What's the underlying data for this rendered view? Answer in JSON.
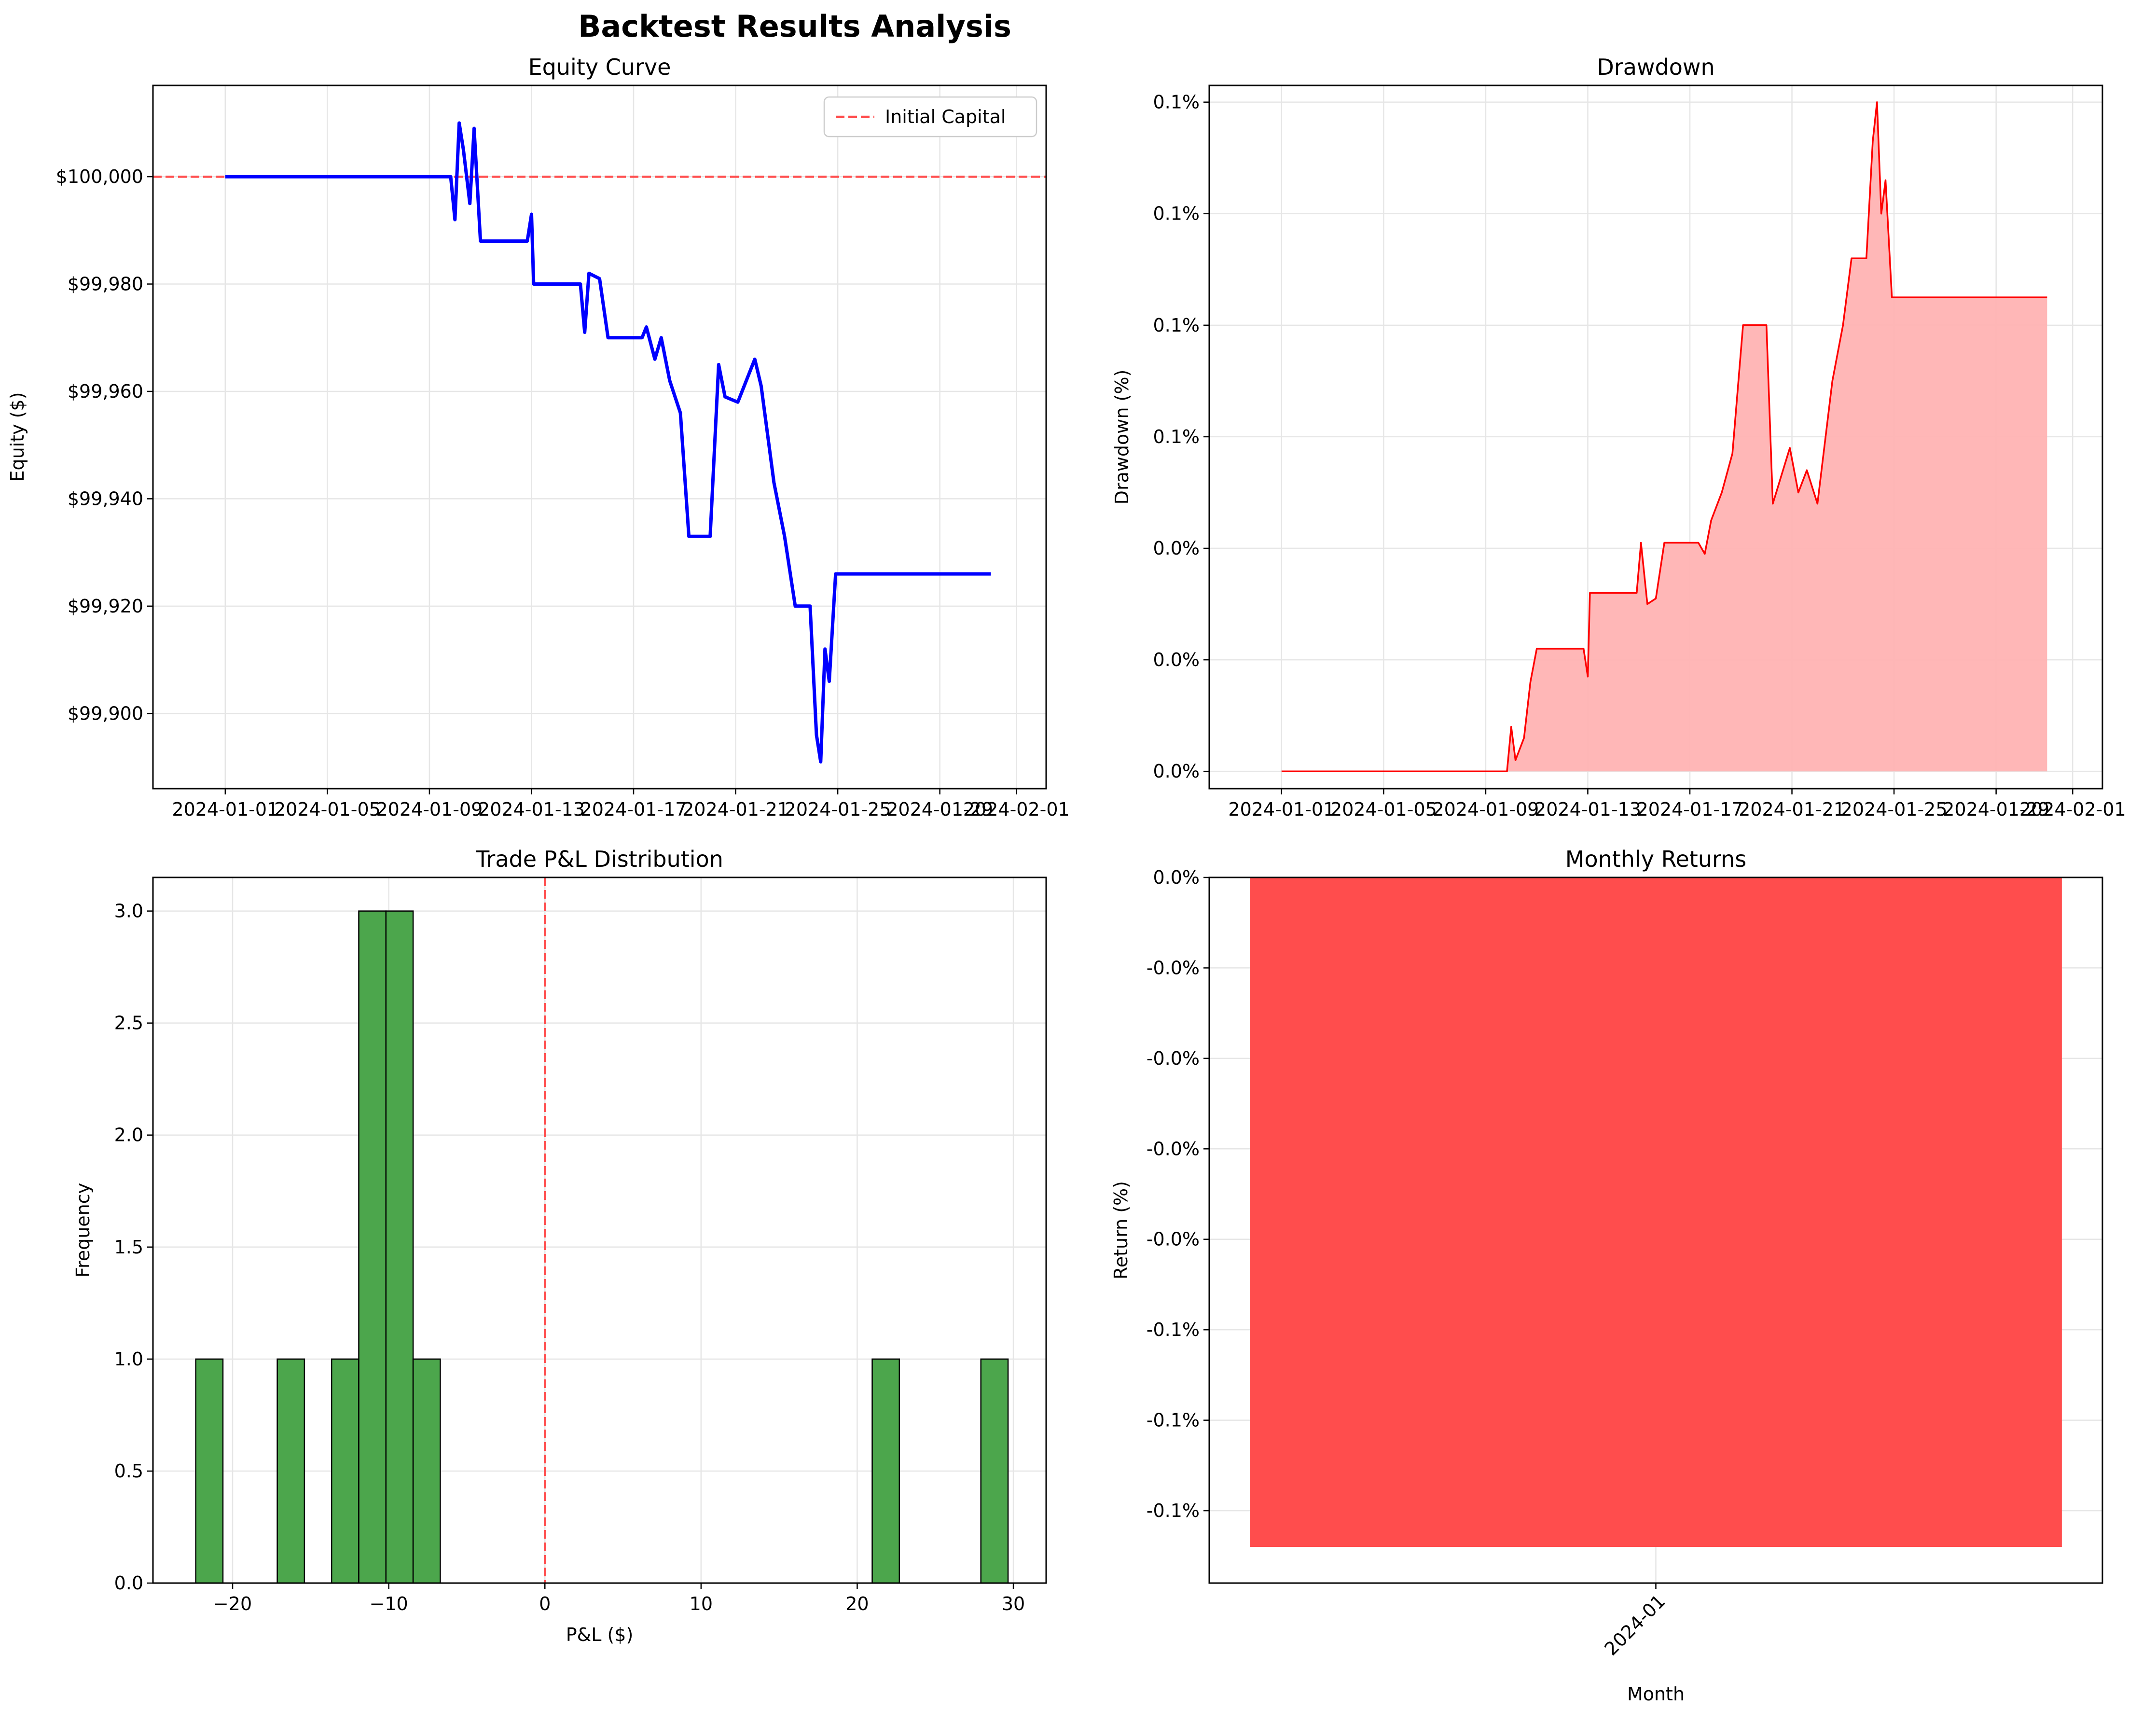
{
  "suptitle": "Backtest Results Analysis",
  "colors": {
    "equity_line": "#0000ff",
    "initial_capital_line": "#ff4d4d",
    "drawdown_line": "#ff0000",
    "drawdown_fill": "#ffb3b3",
    "histogram_bar": "#4ca64c",
    "zero_line": "#ff4d4d",
    "monthly_bar": "#ff4d4d",
    "grid": "#e6e6e6"
  },
  "chart_data": [
    {
      "type": "line",
      "title": "Equity Curve",
      "xlabel": "",
      "ylabel": "Equity ($)",
      "x_ticks": [
        "2024-01-01",
        "2024-01-05",
        "2024-01-09",
        "2024-01-13",
        "2024-01-17",
        "2024-01-21",
        "2024-01-25",
        "2024-01-29",
        "2024-02-01"
      ],
      "y_ticks": [
        "$99,900",
        "$99,920",
        "$99,940",
        "$99,960",
        "$99,980",
        "$100,000"
      ],
      "ylim": [
        99886,
        100017
      ],
      "grid": true,
      "legend": {
        "placement": "upper right",
        "entries": [
          "Initial Capital"
        ]
      },
      "reference_line": {
        "name": "Initial Capital",
        "y": 100000,
        "style": "dashed"
      },
      "series": [
        {
          "points": [
            [
              "2024-01-01",
              100000
            ],
            [
              "2024-01-09 20:00",
              100000
            ],
            [
              "2024-01-10 00:00",
              99992
            ],
            [
              "2024-01-10 04:00",
              100010
            ],
            [
              "2024-01-10 08:00",
              100005
            ],
            [
              "2024-01-10 14:00",
              99995
            ],
            [
              "2024-01-10 18:00",
              100009
            ],
            [
              "2024-01-11 00:00",
              99988
            ],
            [
              "2024-01-12 20:00",
              99988
            ],
            [
              "2024-01-13 00:00",
              99993
            ],
            [
              "2024-01-13 02:00",
              99980
            ],
            [
              "2024-01-14 22:00",
              99980
            ],
            [
              "2024-01-15 02:00",
              99971
            ],
            [
              "2024-01-15 06:00",
              99982
            ],
            [
              "2024-01-15 16:00",
              99981
            ],
            [
              "2024-01-16 00:00",
              99970
            ],
            [
              "2024-01-17 08:00",
              99970
            ],
            [
              "2024-01-17 12:00",
              99972
            ],
            [
              "2024-01-17 20:00",
              99966
            ],
            [
              "2024-01-18 02:00",
              99970
            ],
            [
              "2024-01-18 10:00",
              99962
            ],
            [
              "2024-01-18 20:00",
              99956
            ],
            [
              "2024-01-19 04:00",
              99933
            ],
            [
              "2024-01-20 00:00",
              99933
            ],
            [
              "2024-01-20 08:00",
              99965
            ],
            [
              "2024-01-20 14:00",
              99959
            ],
            [
              "2024-01-21 02:00",
              99958
            ],
            [
              "2024-01-21 10:00",
              99962
            ],
            [
              "2024-01-21 18:00",
              99966
            ],
            [
              "2024-01-22 00:00",
              99961
            ],
            [
              "2024-01-22 12:00",
              99943
            ],
            [
              "2024-01-22 22:00",
              99933
            ],
            [
              "2024-01-23 08:00",
              99920
            ],
            [
              "2024-01-23 22:00",
              99920
            ],
            [
              "2024-01-24 04:00",
              99896
            ],
            [
              "2024-01-24 08:00",
              99891
            ],
            [
              "2024-01-24 12:00",
              99912
            ],
            [
              "2024-01-24 16:00",
              99906
            ],
            [
              "2024-01-24 22:00",
              99926
            ],
            [
              "2024-01-31 00:00",
              99926
            ]
          ]
        }
      ]
    },
    {
      "type": "area",
      "title": "Drawdown",
      "xlabel": "",
      "ylabel": "Drawdown (%)",
      "x_ticks": [
        "2024-01-01",
        "2024-01-05",
        "2024-01-09",
        "2024-01-13",
        "2024-01-17",
        "2024-01-21",
        "2024-01-25",
        "2024-01-29",
        "2024-02-01"
      ],
      "y_ticks": [
        "0.0%",
        "0.0%",
        "0.0%",
        "0.1%",
        "0.1%",
        "0.1%",
        "0.1%"
      ],
      "ylim": [
        -0.0031,
        0.123
      ],
      "grid": true,
      "series": [
        {
          "points": [
            [
              "2024-01-01",
              0
            ],
            [
              "2024-01-09 20:00",
              0
            ],
            [
              "2024-01-10 00:00",
              0.008
            ],
            [
              "2024-01-10 04:00",
              0.002
            ],
            [
              "2024-01-10 12:00",
              0.006
            ],
            [
              "2024-01-10 18:00",
              0.016
            ],
            [
              "2024-01-11 00:00",
              0.022
            ],
            [
              "2024-01-12 20:00",
              0.022
            ],
            [
              "2024-01-13 00:00",
              0.017
            ],
            [
              "2024-01-13 02:00",
              0.032
            ],
            [
              "2024-01-14 22:00",
              0.032
            ],
            [
              "2024-01-15 02:00",
              0.041
            ],
            [
              "2024-01-15 08:00",
              0.03
            ],
            [
              "2024-01-15 16:00",
              0.031
            ],
            [
              "2024-01-16 00:00",
              0.041
            ],
            [
              "2024-01-17 08:00",
              0.041
            ],
            [
              "2024-01-17 14:00",
              0.039
            ],
            [
              "2024-01-17 20:00",
              0.045
            ],
            [
              "2024-01-18 06:00",
              0.05
            ],
            [
              "2024-01-18 16:00",
              0.057
            ],
            [
              "2024-01-19 02:00",
              0.08
            ],
            [
              "2024-01-20 00:00",
              0.08
            ],
            [
              "2024-01-20 06:00",
              0.048
            ],
            [
              "2024-01-20 14:00",
              0.053
            ],
            [
              "2024-01-20 22:00",
              0.058
            ],
            [
              "2024-01-21 06:00",
              0.05
            ],
            [
              "2024-01-21 14:00",
              0.054
            ],
            [
              "2024-01-22 00:00",
              0.048
            ],
            [
              "2024-01-22 14:00",
              0.07
            ],
            [
              "2024-01-23 00:00",
              0.08
            ],
            [
              "2024-01-23 08:00",
              0.092
            ],
            [
              "2024-01-23 22:00",
              0.092
            ],
            [
              "2024-01-24 04:00",
              0.113
            ],
            [
              "2024-01-24 08:00",
              0.12
            ],
            [
              "2024-01-24 12:00",
              0.1
            ],
            [
              "2024-01-24 16:00",
              0.106
            ],
            [
              "2024-01-24 22:00",
              0.085
            ],
            [
              "2024-01-31 00:00",
              0.085
            ]
          ]
        }
      ]
    },
    {
      "type": "bar",
      "title": "Trade P&L Distribution",
      "xlabel": "P&L ($)",
      "ylabel": "Frequency",
      "x_ticks": [
        "−20",
        "−10",
        "0",
        "10",
        "20",
        "30"
      ],
      "y_ticks": [
        "0.0",
        "0.5",
        "1.0",
        "1.5",
        "2.0",
        "2.5",
        "3.0"
      ],
      "xlim": [
        -25.1,
        32.1
      ],
      "ylim": [
        0,
        3.15
      ],
      "grid": true,
      "reference_line": {
        "x": 0,
        "style": "dashed"
      },
      "bin_width": 1.74,
      "bins": [
        {
          "start": -22.36,
          "count": 1
        },
        {
          "start": -17.14,
          "count": 1
        },
        {
          "start": -13.66,
          "count": 1
        },
        {
          "start": -11.92,
          "count": 3
        },
        {
          "start": -10.18,
          "count": 3
        },
        {
          "start": -8.44,
          "count": 1
        },
        {
          "start": 20.96,
          "count": 1
        },
        {
          "start": 27.92,
          "count": 1
        }
      ]
    },
    {
      "type": "bar",
      "title": "Monthly Returns",
      "xlabel": "Month",
      "ylabel": "Return (%)",
      "categories": [
        "2024-01"
      ],
      "values": [
        -0.074
      ],
      "y_ticks": [
        "0.0%",
        "-0.0%",
        "-0.0%",
        "-0.0%",
        "-0.0%",
        "-0.1%",
        "-0.1%",
        "-0.1%"
      ],
      "ylim": [
        -0.078,
        0
      ],
      "grid": true
    }
  ]
}
